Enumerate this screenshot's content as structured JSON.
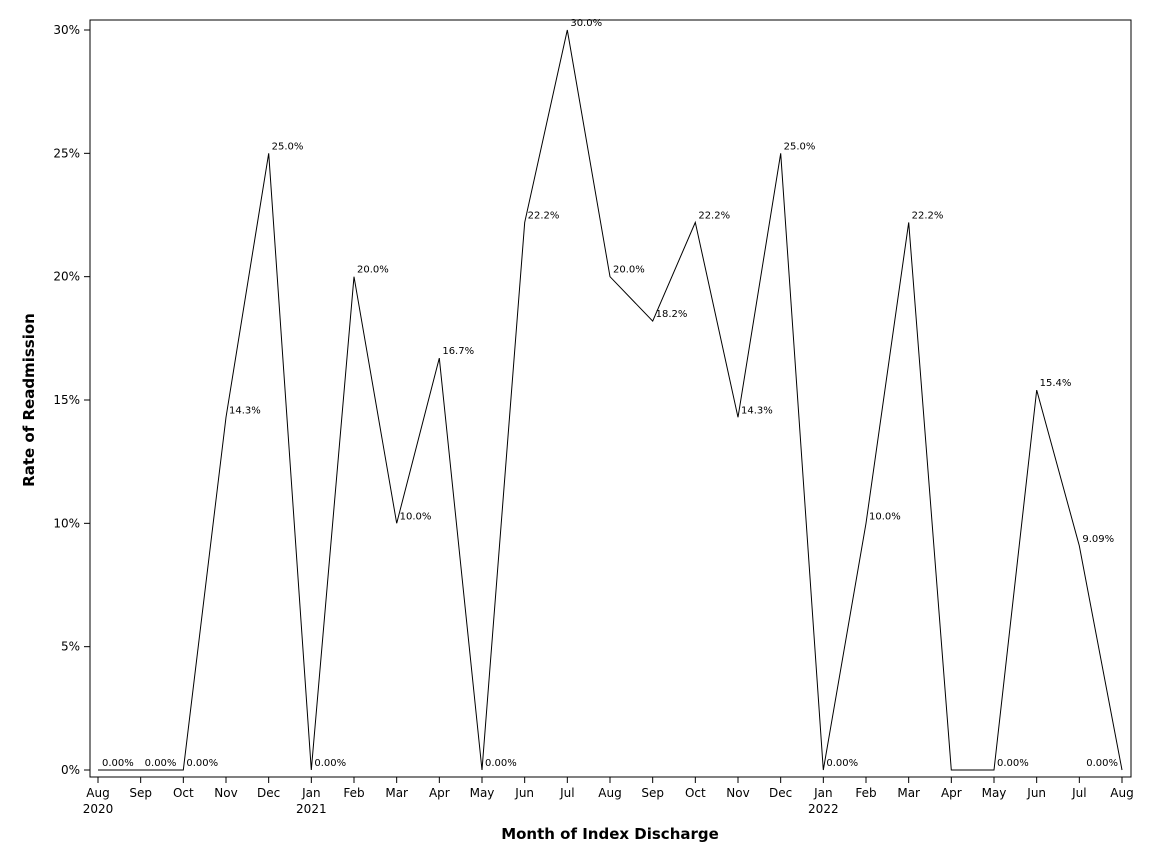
{
  "chart_data": {
    "type": "line",
    "title": "",
    "xlabel": "Month of Index Discharge",
    "ylabel": "Rate of Readmission",
    "ylim": [
      0,
      30
    ],
    "grid": false,
    "y_ticks": [
      {
        "value": 0,
        "label": "0%"
      },
      {
        "value": 5,
        "label": "5%"
      },
      {
        "value": 10,
        "label": "10%"
      },
      {
        "value": 15,
        "label": "15%"
      },
      {
        "value": 20,
        "label": "20%"
      },
      {
        "value": 25,
        "label": "25%"
      },
      {
        "value": 30,
        "label": "30%"
      }
    ],
    "categories": [
      "Aug",
      "Sep",
      "Oct",
      "Nov",
      "Dec",
      "Jan",
      "Feb",
      "Mar",
      "Apr",
      "May",
      "Jun",
      "Jul",
      "Aug",
      "Sep",
      "Oct",
      "Nov",
      "Dec",
      "Jan",
      "Feb",
      "Mar",
      "Apr",
      "May",
      "Jun",
      "Jul",
      "Aug"
    ],
    "year_labels": {
      "0": "2020",
      "5": "2021",
      "17": "2022"
    },
    "series": [
      {
        "values": [
          0,
          0,
          0,
          14.3,
          25,
          0,
          20,
          10,
          16.7,
          0,
          22.2,
          30,
          20,
          18.2,
          22.2,
          14.3,
          25,
          0,
          10,
          22.2,
          0,
          0,
          15.4,
          9.09,
          0
        ],
        "labels": [
          "0.00%",
          "0.00%",
          "0.00%",
          "14.3%",
          "25.0%",
          "0.00%",
          "20.0%",
          "10.0%",
          "16.7%",
          "0.00%",
          "22.2%",
          "30.0%",
          "20.0%",
          "18.2%",
          "22.2%",
          "14.3%",
          "25.0%",
          "0.00%",
          "10.0%",
          "22.2%",
          "",
          "0.00%",
          "15.4%",
          "9.09%",
          "0.00%"
        ]
      }
    ]
  }
}
